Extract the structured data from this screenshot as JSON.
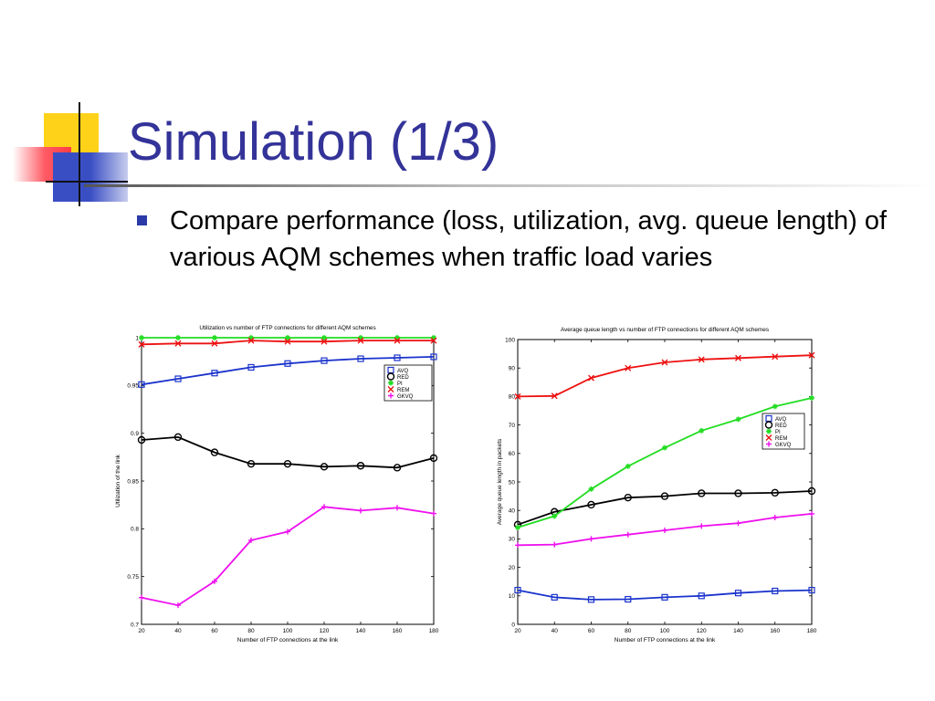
{
  "slide": {
    "title": "Simulation (1/3)",
    "bullet": "Compare performance (loss, utilization, avg. queue length) of various AQM schemes when traffic load varies"
  },
  "chart_data": [
    {
      "type": "line",
      "title": "Utilization vs number of FTP connections for different AQM schemes",
      "xlabel": "Number of FTP connections at the link",
      "ylabel": "Utilization of the link",
      "xlim": [
        20,
        180
      ],
      "ylim": [
        0.7,
        1.0
      ],
      "x": [
        20,
        40,
        60,
        80,
        100,
        120,
        140,
        160,
        180
      ],
      "xticks": [
        "20",
        "40",
        "60",
        "80",
        "100",
        "120",
        "140",
        "160",
        "180"
      ],
      "yticks": [
        {
          "v": 0.7,
          "t": "0.7"
        },
        {
          "v": 0.75,
          "t": "0.75"
        },
        {
          "v": 0.8,
          "t": "0.8"
        },
        {
          "v": 0.85,
          "t": "0.85"
        },
        {
          "v": 0.9,
          "t": "0.9"
        },
        {
          "v": 0.95,
          "t": "0.95"
        },
        {
          "v": 1.0,
          "t": "1"
        }
      ],
      "grid": false,
      "legend_position": "top-right",
      "series": [
        {
          "name": "AVQ",
          "color": "#1a33cc",
          "marker": "square",
          "values": [
            0.951,
            0.957,
            0.963,
            0.969,
            0.973,
            0.976,
            0.978,
            0.979,
            0.98
          ]
        },
        {
          "name": "RED",
          "color": "#000000",
          "marker": "circle",
          "values": [
            0.893,
            0.896,
            0.88,
            0.868,
            0.868,
            0.865,
            0.866,
            0.864,
            0.874
          ]
        },
        {
          "name": "PI",
          "color": "#22dd22",
          "marker": "star",
          "values": [
            1.0,
            1.0,
            1.0,
            1.0,
            1.0,
            1.0,
            1.0,
            1.0,
            1.0
          ]
        },
        {
          "name": "REM",
          "color": "#ee1111",
          "marker": "x",
          "values": [
            0.993,
            0.994,
            0.994,
            0.997,
            0.996,
            0.996,
            0.997,
            0.997,
            0.997
          ]
        },
        {
          "name": "GKVQ",
          "color": "#ee11ee",
          "marker": "plus",
          "values": [
            0.728,
            0.72,
            0.745,
            0.788,
            0.797,
            0.823,
            0.819,
            0.822,
            0.816
          ]
        }
      ]
    },
    {
      "type": "line",
      "title": "Average queue length vs number of FTP connections for different AQM schemes",
      "xlabel": "Number of FTP connections at the link",
      "ylabel": "Average queue length in packets",
      "xlim": [
        20,
        180
      ],
      "ylim": [
        0,
        100
      ],
      "x": [
        20,
        40,
        60,
        80,
        100,
        120,
        140,
        160,
        180
      ],
      "xticks": [
        "20",
        "40",
        "60",
        "80",
        "100",
        "120",
        "140",
        "160",
        "180"
      ],
      "yticks": [
        {
          "v": 0,
          "t": "0"
        },
        {
          "v": 10,
          "t": "10"
        },
        {
          "v": 20,
          "t": "20"
        },
        {
          "v": 30,
          "t": "30"
        },
        {
          "v": 40,
          "t": "40"
        },
        {
          "v": 50,
          "t": "50"
        },
        {
          "v": 60,
          "t": "60"
        },
        {
          "v": 70,
          "t": "70"
        },
        {
          "v": 80,
          "t": "80"
        },
        {
          "v": 90,
          "t": "90"
        },
        {
          "v": 100,
          "t": "100"
        }
      ],
      "grid": false,
      "legend_position": "right",
      "series": [
        {
          "name": "AVQ",
          "color": "#1a33cc",
          "marker": "square",
          "values": [
            12,
            9.5,
            8.7,
            8.8,
            9.5,
            10,
            11,
            11.7,
            12
          ]
        },
        {
          "name": "RED",
          "color": "#000000",
          "marker": "circle",
          "values": [
            35,
            39.5,
            42,
            44.5,
            45,
            46,
            46,
            46.2,
            46.8
          ]
        },
        {
          "name": "PI",
          "color": "#22dd22",
          "marker": "star",
          "values": [
            34,
            38,
            47.5,
            55.5,
            62,
            68,
            72,
            76.5,
            79.5
          ]
        },
        {
          "name": "REM",
          "color": "#ee1111",
          "marker": "x",
          "values": [
            80,
            80.2,
            86.5,
            90,
            92,
            93,
            93.5,
            94,
            94.5
          ]
        },
        {
          "name": "GKVQ",
          "color": "#ee11ee",
          "marker": "plus",
          "values": [
            27.8,
            28,
            30,
            31.5,
            33,
            34.5,
            35.5,
            37.5,
            38.8
          ]
        }
      ]
    }
  ]
}
